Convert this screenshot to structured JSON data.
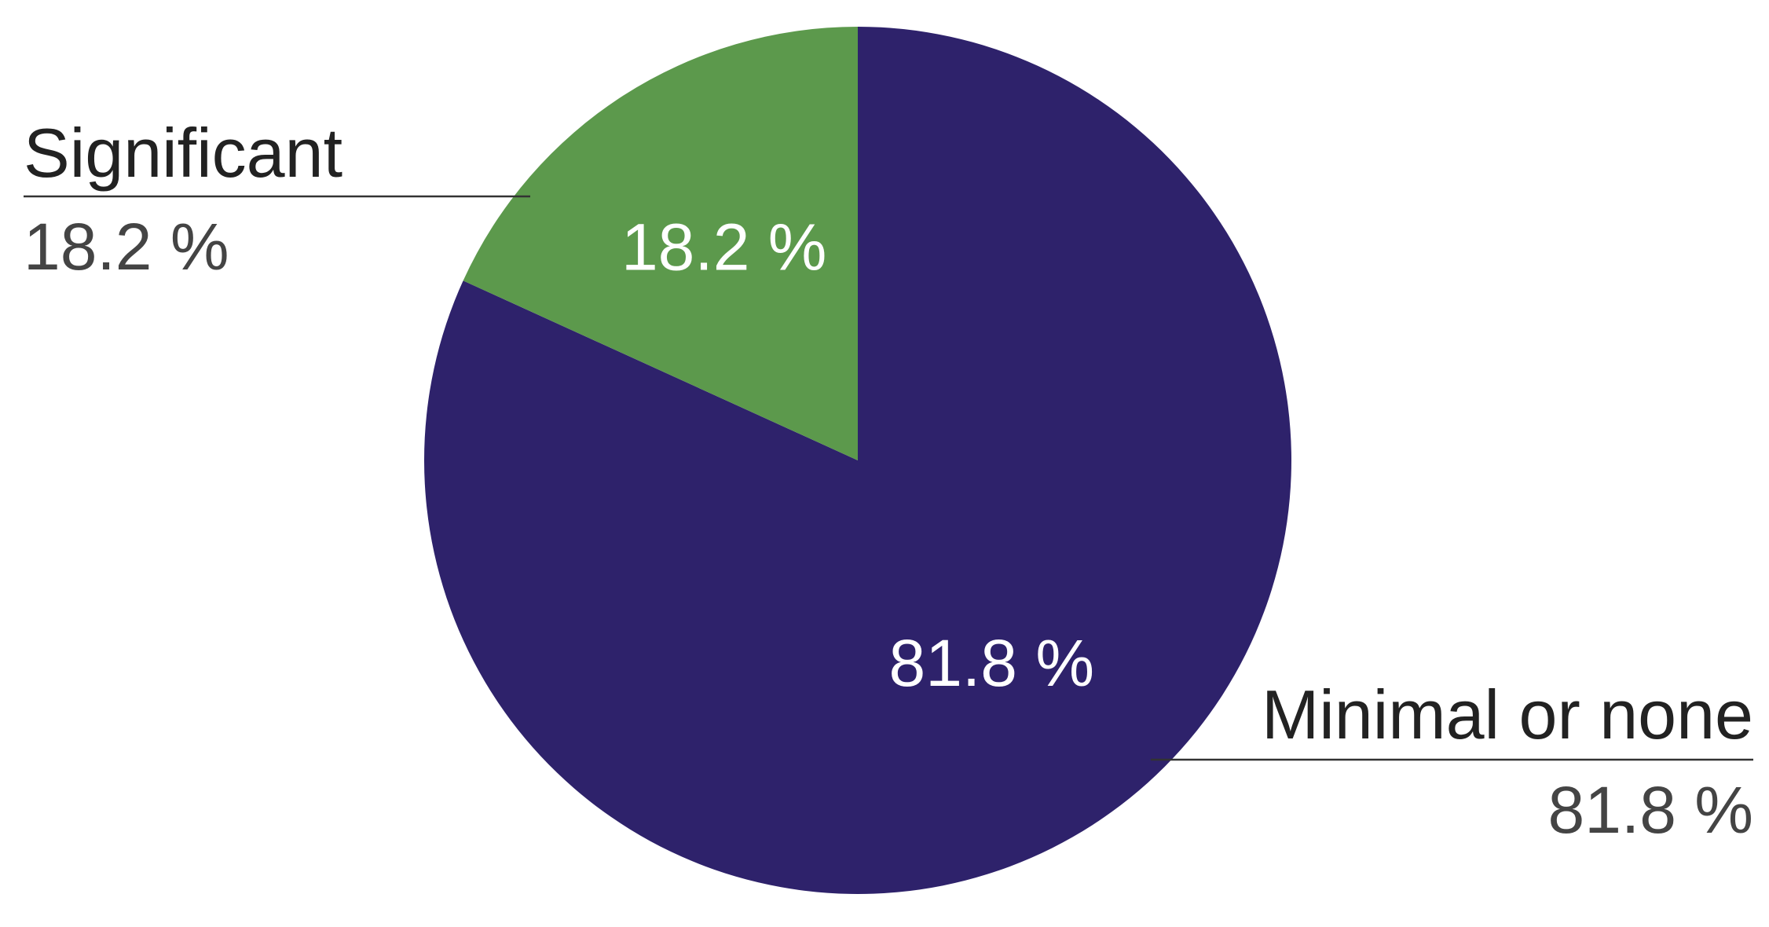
{
  "chart_data": {
    "type": "pie",
    "slices": [
      {
        "label": "Minimal or none",
        "value": 81.8,
        "display": "81.8 %",
        "color": "#2e226b"
      },
      {
        "label": "Significant",
        "value": 18.2,
        "display": "18.2 %",
        "color": "#5c994c"
      }
    ],
    "start": "12 o'clock",
    "direction": "clockwise"
  }
}
